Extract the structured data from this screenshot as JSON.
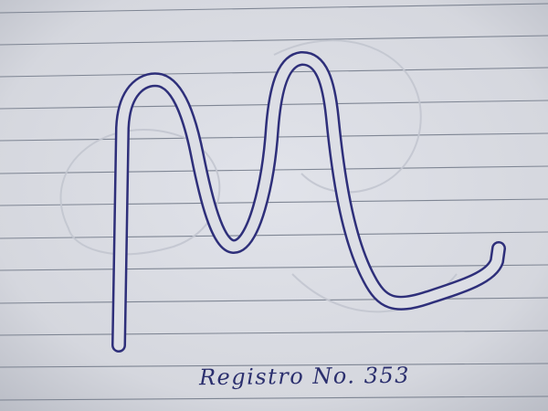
{
  "photo": {
    "subject": "hand-drawn-monogram-ml",
    "caption": "Registro No. 353",
    "colors": {
      "paper": "#d9dbe2",
      "ruling": "#6f7786",
      "ink": "#2e2f7a",
      "faint_sketch": "#c6c9d2"
    }
  }
}
